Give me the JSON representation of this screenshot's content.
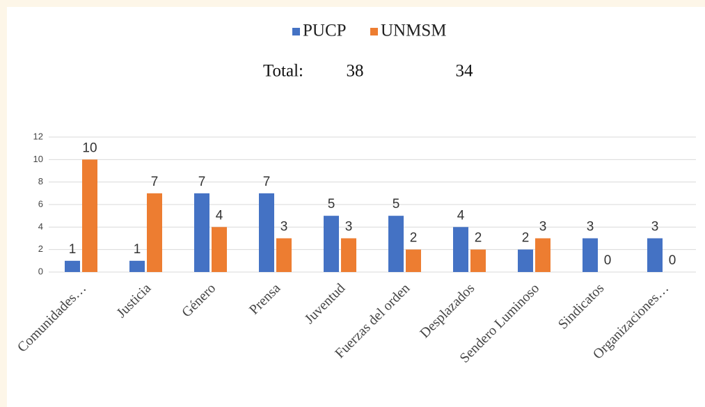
{
  "chart_data": {
    "type": "bar",
    "categories": [
      "Comunidades…",
      "Justicia",
      "Género",
      "Prensa",
      "Juventud",
      "Fuerzas del orden",
      "Desplazados",
      "Sendero Luminoso",
      "Sindicatos",
      "Organizaciones…"
    ],
    "series": [
      {
        "name": "PUCP",
        "color": "#4472c4",
        "values": [
          1,
          1,
          7,
          7,
          5,
          5,
          4,
          2,
          3,
          3
        ]
      },
      {
        "name": "UNMSM",
        "color": "#ed7d31",
        "values": [
          10,
          7,
          4,
          3,
          3,
          2,
          2,
          3,
          0,
          0
        ]
      }
    ],
    "total": {
      "label": "Total:",
      "values": [
        38,
        34
      ]
    },
    "ylim": [
      0,
      12
    ],
    "yticks": [
      0,
      2,
      4,
      6,
      8,
      10,
      12
    ],
    "grid": true,
    "legend": "top"
  }
}
